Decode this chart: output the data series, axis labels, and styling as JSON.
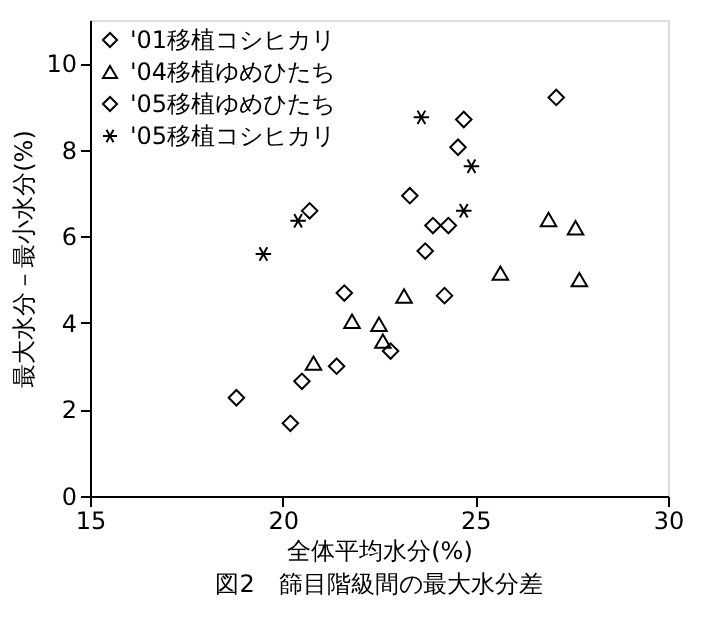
{
  "chart_data": {
    "type": "scatter",
    "title": "図2　篩目階級間の最大水分差",
    "xlabel": "全体平均水分(%)",
    "ylabel": "最大水分－最小水分(%)",
    "xlim": [
      15,
      30
    ],
    "xticks": [
      15,
      20,
      25,
      30
    ],
    "ylim": [
      0,
      11
    ],
    "yticks": [
      0,
      2,
      4,
      6,
      8,
      10
    ],
    "grid": false,
    "legend": "top left",
    "series": [
      {
        "name": "'01移植コシヒカリ",
        "color": "#000000",
        "marker": "diamond",
        "x": [
          20.2,
          20.5,
          21.6,
          22.8,
          23.3,
          24.55,
          23.9,
          24.3
        ],
        "values": [
          1.68,
          2.65,
          4.69,
          3.35,
          6.94,
          8.06,
          6.25,
          6.25
        ]
      },
      {
        "name": "'04移植ゆめひたち",
        "color": "#000000",
        "marker": "triangle",
        "x": [
          20.8,
          21.8,
          22.5,
          22.6,
          23.15,
          25.65,
          27.7,
          26.9,
          27.6
        ],
        "values": [
          3.07,
          4.04,
          3.97,
          3.58,
          4.62,
          5.15,
          5.0,
          6.39,
          6.2
        ]
      },
      {
        "name": "'05移植ゆめひたち",
        "color": "#000000",
        "marker": "diamond",
        "x": [
          18.8,
          21.4,
          24.2,
          23.7,
          24.7,
          27.1,
          20.7
        ],
        "values": [
          2.27,
          3.0,
          4.63,
          5.66,
          8.7,
          9.21,
          6.59
        ]
      },
      {
        "name": "'05移植コシヒカリ",
        "color": "#000000",
        "marker": "cross",
        "x": [
          24.7,
          19.5,
          20.4,
          23.6,
          24.9
        ],
        "values": [
          6.59,
          5.59,
          6.36,
          8.75,
          7.62
        ]
      }
    ]
  }
}
